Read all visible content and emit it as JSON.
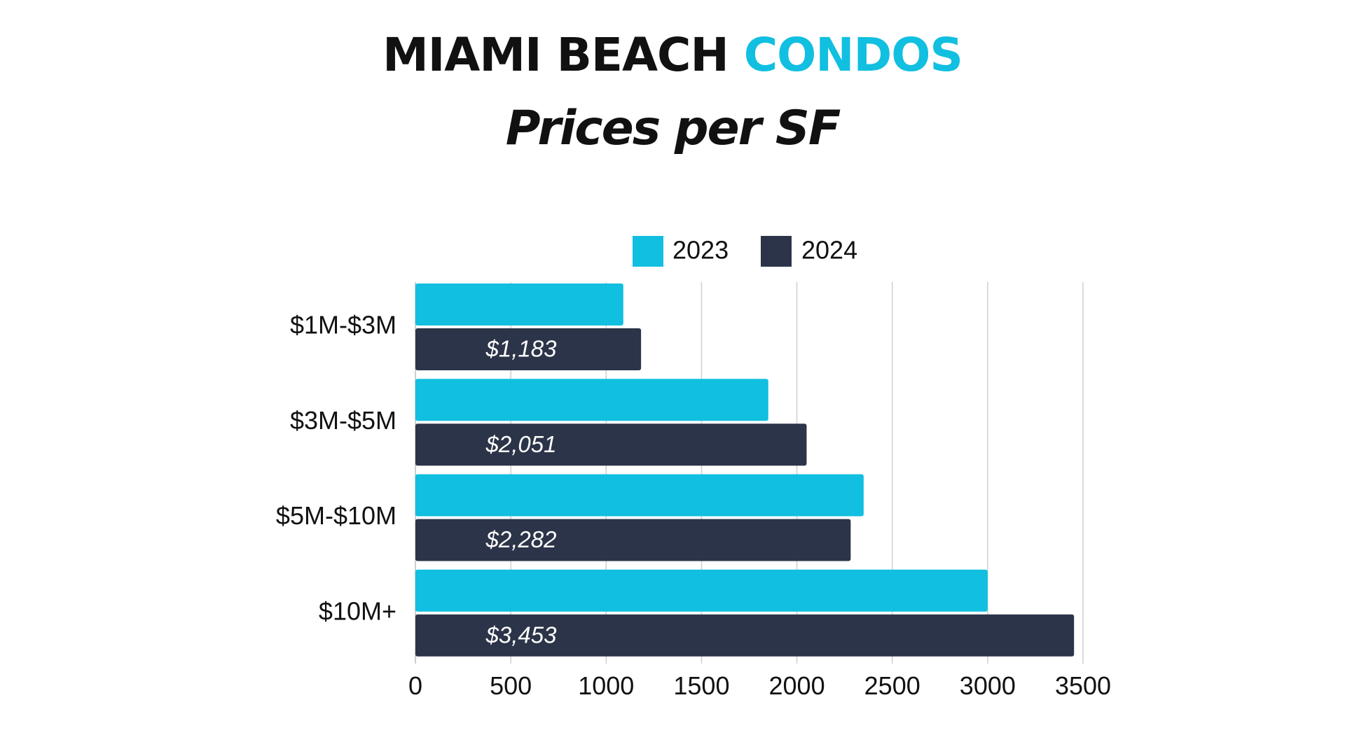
{
  "title": {
    "part1": "MIAMI BEACH",
    "part2": "CONDOS",
    "accent_color": "#11BFE0"
  },
  "subtitle": "Prices per SF",
  "chart_data": {
    "type": "bar",
    "orientation": "horizontal",
    "categories": [
      "$1M-$3M",
      "$3M-$5M",
      "$5M-$10M",
      "$10M+"
    ],
    "series": [
      {
        "name": "2023",
        "color": "#11BFE0",
        "values": [
          1090,
          1850,
          2350,
          3000
        ],
        "data_labels": [
          "",
          "",
          "",
          ""
        ]
      },
      {
        "name": "2024",
        "color": "#2B3448",
        "values": [
          1183,
          2051,
          2282,
          3453
        ],
        "data_labels": [
          "$1,183",
          "$2,051",
          "$2,282",
          "$3,453"
        ]
      }
    ],
    "xlim": [
      0,
      3500
    ],
    "xticks": [
      "0",
      "500",
      "1000",
      "1500",
      "2000",
      "2500",
      "3000",
      "3500"
    ],
    "grid": true,
    "legend_position": "top"
  }
}
